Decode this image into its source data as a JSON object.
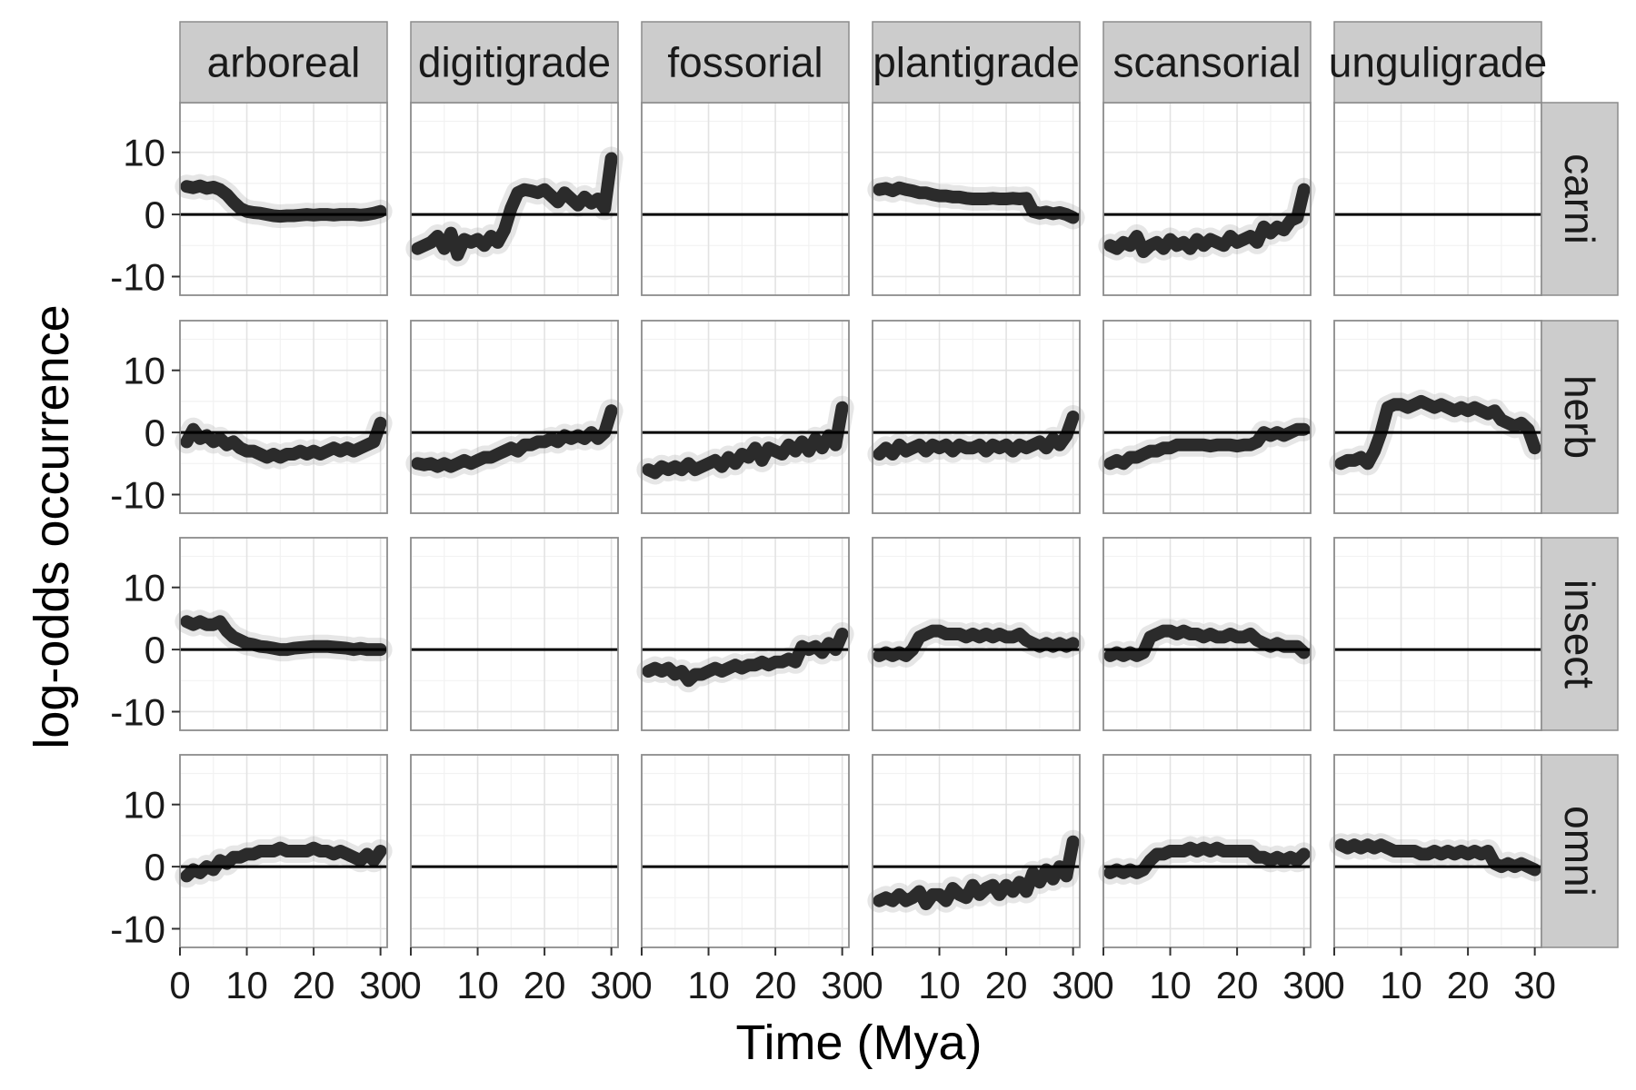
{
  "chart_data": {
    "type": "line",
    "xlabel": "Time (Mya)",
    "ylabel": "log-odds occurrence",
    "xlim": [
      0,
      31
    ],
    "ylim": [
      -13,
      18
    ],
    "x_ticks": [
      "0",
      "10",
      "20",
      "30"
    ],
    "y_ticks": [
      "10",
      "0",
      "-10"
    ],
    "x_tick_values": [
      0,
      10,
      20,
      30
    ],
    "y_tick_values": [
      10,
      0,
      -10
    ],
    "reference_line": 0,
    "grid": true,
    "columns": [
      "arboreal",
      "digitigrade",
      "fossorial",
      "plantigrade",
      "scansorial",
      "unguligrade"
    ],
    "rows": [
      "carni",
      "herb",
      "insect",
      "omni"
    ],
    "x": [
      1,
      2,
      3,
      4,
      5,
      6,
      7,
      8,
      9,
      10,
      11,
      12,
      13,
      14,
      15,
      16,
      17,
      18,
      19,
      20,
      21,
      22,
      23,
      24,
      25,
      26,
      27,
      28,
      29,
      30
    ],
    "panels": [
      {
        "row": "carni",
        "col": "arboreal",
        "values": [
          4.5,
          4.3,
          4.6,
          4.2,
          4.4,
          4.0,
          3.2,
          2.0,
          1.0,
          0.5,
          0.3,
          0.2,
          0.0,
          -0.2,
          -0.3,
          -0.2,
          -0.2,
          -0.1,
          0.0,
          -0.1,
          0.0,
          0.0,
          -0.1,
          0.0,
          0.0,
          0.0,
          -0.1,
          0.0,
          0.2,
          0.5
        ]
      },
      {
        "row": "carni",
        "col": "digitigrade",
        "values": [
          -5.5,
          -5.0,
          -4.5,
          -3.5,
          -5.5,
          -3.0,
          -6.5,
          -4.0,
          -4.5,
          -4.0,
          -5.0,
          -3.5,
          -4.5,
          -2.5,
          1.0,
          3.5,
          4.0,
          3.8,
          3.5,
          4.0,
          3.0,
          2.0,
          3.5,
          2.5,
          1.5,
          2.8,
          1.8,
          2.5,
          1.0,
          9.0
        ]
      },
      {
        "row": "carni",
        "col": "fossorial",
        "values": null
      },
      {
        "row": "carni",
        "col": "plantigrade",
        "values": [
          4.0,
          4.2,
          3.8,
          4.3,
          4.0,
          3.8,
          3.5,
          3.5,
          3.2,
          3.0,
          3.0,
          2.8,
          2.8,
          2.6,
          2.5,
          2.5,
          2.5,
          2.6,
          2.5,
          2.5,
          2.6,
          2.5,
          2.6,
          0.5,
          0.2,
          0.4,
          0.1,
          0.3,
          0.0,
          -0.5
        ]
      },
      {
        "row": "carni",
        "col": "scansorial",
        "values": [
          -5.0,
          -5.5,
          -4.5,
          -5.0,
          -3.5,
          -6.0,
          -5.0,
          -4.5,
          -5.5,
          -4.0,
          -5.0,
          -4.5,
          -5.5,
          -4.0,
          -5.0,
          -4.0,
          -4.5,
          -5.0,
          -3.5,
          -4.5,
          -4.0,
          -3.5,
          -4.5,
          -2.0,
          -3.0,
          -2.0,
          -2.5,
          -1.0,
          -0.5,
          4.0
        ]
      },
      {
        "row": "carni",
        "col": "unguligrade",
        "values": null
      },
      {
        "row": "herb",
        "col": "arboreal",
        "values": [
          -1.5,
          0.5,
          -1.0,
          -0.5,
          -1.5,
          -1.0,
          -2.0,
          -1.5,
          -2.5,
          -3.0,
          -3.0,
          -3.5,
          -4.0,
          -3.5,
          -4.0,
          -3.5,
          -3.5,
          -3.0,
          -3.5,
          -3.0,
          -3.5,
          -3.0,
          -2.5,
          -3.0,
          -2.5,
          -3.0,
          -2.5,
          -2.0,
          -1.5,
          1.5
        ]
      },
      {
        "row": "herb",
        "col": "digitigrade",
        "values": [
          -5.0,
          -5.2,
          -5.0,
          -5.5,
          -5.0,
          -5.5,
          -5.0,
          -4.5,
          -5.0,
          -4.5,
          -4.0,
          -4.0,
          -3.5,
          -3.0,
          -2.5,
          -3.0,
          -2.0,
          -2.0,
          -1.5,
          -1.5,
          -1.0,
          -1.5,
          -0.5,
          -1.0,
          -0.5,
          -1.0,
          0.0,
          -1.0,
          0.0,
          3.5
        ]
      },
      {
        "row": "herb",
        "col": "fossorial",
        "values": [
          -6.0,
          -6.5,
          -5.5,
          -6.0,
          -5.5,
          -6.0,
          -5.0,
          -6.0,
          -5.5,
          -5.0,
          -4.5,
          -5.5,
          -4.0,
          -5.0,
          -3.5,
          -4.0,
          -2.5,
          -4.5,
          -2.5,
          -3.0,
          -3.5,
          -2.0,
          -3.0,
          -1.5,
          -3.0,
          -1.0,
          -2.5,
          -0.5,
          -2.0,
          4.0
        ]
      },
      {
        "row": "herb",
        "col": "plantigrade",
        "values": [
          -3.5,
          -2.5,
          -3.5,
          -2.0,
          -3.0,
          -2.5,
          -2.0,
          -3.0,
          -2.0,
          -2.5,
          -2.0,
          -3.0,
          -2.0,
          -2.5,
          -2.5,
          -2.0,
          -3.0,
          -2.0,
          -2.5,
          -2.0,
          -3.0,
          -2.0,
          -2.5,
          -2.0,
          -1.5,
          -2.5,
          -1.0,
          -2.0,
          -0.5,
          2.5
        ]
      },
      {
        "row": "herb",
        "col": "scansorial",
        "values": [
          -5.0,
          -4.5,
          -5.0,
          -4.0,
          -4.0,
          -3.5,
          -3.0,
          -3.0,
          -2.5,
          -2.5,
          -2.0,
          -2.0,
          -2.0,
          -2.0,
          -2.0,
          -2.2,
          -2.0,
          -2.0,
          -2.0,
          -2.2,
          -2.0,
          -2.0,
          -1.5,
          0.0,
          -0.5,
          0.0,
          -0.5,
          0.0,
          0.5,
          0.5
        ]
      },
      {
        "row": "herb",
        "col": "unguligrade",
        "values": [
          -5.0,
          -4.5,
          -4.5,
          -4.0,
          -5.0,
          -3.0,
          0.0,
          4.0,
          4.5,
          4.5,
          4.0,
          4.5,
          5.0,
          4.5,
          4.0,
          4.5,
          4.0,
          3.5,
          4.0,
          3.5,
          4.0,
          3.5,
          3.0,
          3.5,
          2.0,
          1.5,
          1.0,
          1.5,
          0.5,
          -2.5
        ]
      },
      {
        "row": "insect",
        "col": "arboreal",
        "values": [
          4.5,
          4.0,
          4.5,
          4.0,
          4.0,
          4.5,
          3.0,
          2.0,
          1.5,
          1.0,
          0.8,
          0.5,
          0.4,
          0.2,
          0.0,
          0.0,
          0.2,
          0.3,
          0.4,
          0.5,
          0.5,
          0.5,
          0.4,
          0.3,
          0.2,
          0.0,
          0.2,
          0.0,
          0.0,
          0.0
        ]
      },
      {
        "row": "insect",
        "col": "digitigrade",
        "values": null
      },
      {
        "row": "insect",
        "col": "fossorial",
        "values": [
          -3.5,
          -3.0,
          -3.5,
          -3.0,
          -4.0,
          -3.5,
          -5.0,
          -4.0,
          -4.0,
          -3.5,
          -3.0,
          -3.5,
          -3.0,
          -2.5,
          -3.0,
          -2.5,
          -2.5,
          -2.0,
          -2.5,
          -2.0,
          -2.0,
          -1.5,
          -2.0,
          0.5,
          0.0,
          0.5,
          -0.5,
          1.0,
          0.0,
          2.5
        ]
      },
      {
        "row": "insect",
        "col": "plantigrade",
        "values": [
          -1.0,
          -0.5,
          -1.0,
          -0.5,
          -1.0,
          0.0,
          2.0,
          2.5,
          3.0,
          3.0,
          2.5,
          2.5,
          2.5,
          2.0,
          2.5,
          2.0,
          2.5,
          2.0,
          2.5,
          2.0,
          2.0,
          2.5,
          1.5,
          1.0,
          0.5,
          1.0,
          0.5,
          1.0,
          0.5,
          1.0
        ]
      },
      {
        "row": "insect",
        "col": "scansorial",
        "values": [
          -1.0,
          -0.5,
          -1.0,
          -0.5,
          -1.0,
          -0.5,
          2.0,
          2.5,
          3.0,
          3.0,
          2.5,
          3.0,
          2.5,
          2.5,
          2.0,
          2.5,
          2.0,
          2.0,
          2.5,
          2.0,
          2.0,
          2.5,
          1.5,
          1.0,
          0.5,
          1.0,
          0.5,
          0.5,
          0.5,
          -0.5
        ]
      },
      {
        "row": "insect",
        "col": "unguligrade",
        "values": null
      },
      {
        "row": "omni",
        "col": "arboreal",
        "values": [
          -1.5,
          -0.5,
          -1.0,
          0.0,
          -0.5,
          1.0,
          0.5,
          1.5,
          1.5,
          2.0,
          2.0,
          2.5,
          2.5,
          2.5,
          3.0,
          2.5,
          2.5,
          2.5,
          2.5,
          3.0,
          2.5,
          2.5,
          2.0,
          2.5,
          2.0,
          1.5,
          1.0,
          2.0,
          1.0,
          2.5
        ]
      },
      {
        "row": "omni",
        "col": "digitigrade",
        "values": null
      },
      {
        "row": "omni",
        "col": "fossorial",
        "values": null
      },
      {
        "row": "omni",
        "col": "plantigrade",
        "values": [
          -5.5,
          -5.0,
          -5.5,
          -4.5,
          -5.5,
          -5.0,
          -4.0,
          -6.0,
          -4.5,
          -4.5,
          -5.5,
          -3.5,
          -4.5,
          -5.0,
          -3.0,
          -4.5,
          -3.5,
          -3.0,
          -4.5,
          -3.0,
          -4.0,
          -2.5,
          -4.0,
          -1.0,
          -2.5,
          -0.5,
          -2.0,
          0.0,
          -1.5,
          4.0
        ]
      },
      {
        "row": "omni",
        "col": "scansorial",
        "values": [
          -1.0,
          -0.5,
          -1.0,
          -0.5,
          -1.0,
          -0.5,
          1.0,
          2.0,
          2.0,
          2.5,
          2.5,
          2.5,
          3.0,
          2.5,
          3.0,
          2.5,
          3.0,
          2.5,
          2.5,
          2.5,
          2.5,
          2.5,
          1.5,
          1.5,
          1.0,
          1.5,
          1.0,
          1.5,
          1.0,
          2.0
        ]
      },
      {
        "row": "omni",
        "col": "unguligrade",
        "values": [
          3.5,
          3.0,
          3.5,
          3.0,
          3.5,
          3.0,
          3.5,
          3.0,
          2.5,
          2.5,
          2.5,
          2.5,
          2.0,
          2.0,
          2.5,
          2.0,
          2.5,
          2.0,
          2.5,
          2.0,
          2.5,
          2.0,
          2.5,
          0.5,
          0.0,
          0.5,
          0.0,
          0.5,
          0.0,
          -0.5
        ]
      }
    ]
  }
}
